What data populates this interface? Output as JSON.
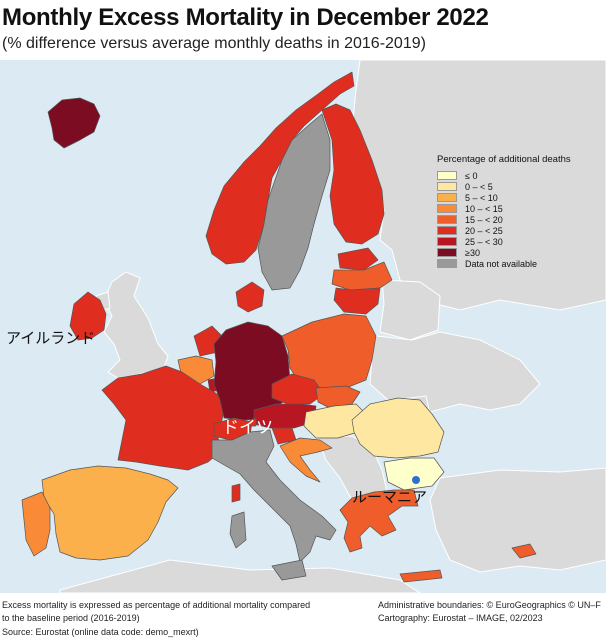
{
  "title": "Monthly Excess Mortality in December 2022",
  "subtitle": "(% difference versus average monthly deaths in 2016-2019)",
  "legend": {
    "title": "Percentage of additional deaths",
    "items": [
      {
        "label": "≤ 0",
        "color": "#ffffcc"
      },
      {
        "label": "0 – < 5",
        "color": "#fde7a1"
      },
      {
        "label": "5 – < 10",
        "color": "#fbb04c"
      },
      {
        "label": "10 – < 15",
        "color": "#f98b38"
      },
      {
        "label": "15 – < 20",
        "color": "#ef5d2a"
      },
      {
        "label": "20 – < 25",
        "color": "#df2e1f"
      },
      {
        "label": "25 – < 30",
        "color": "#b71622"
      },
      {
        "label": "≥30",
        "color": "#7b0c22"
      },
      {
        "label": "Data not available",
        "color": "#999999"
      }
    ]
  },
  "annotations": {
    "ireland": "アイルランド",
    "germany": "ドイツ",
    "romania": "ルーマニア"
  },
  "footer": {
    "note_line1": "Excess mortality is expressed as percentage of additional mortality compared",
    "note_line2": "to the baseline period (2016-2019)",
    "source": "Source: Eurostat (online data code: demo_mexrt)",
    "admin": "Administrative boundaries: © EuroGeographics © UN–F",
    "cartography": "Cartography: Eurostat – IMAGE, 02/2023"
  },
  "colors": {
    "sea": "#dbeaf3",
    "non_eu_land": "#dadada",
    "border": "#555555"
  },
  "countries": [
    {
      "name": "Iceland",
      "class": "≥30"
    },
    {
      "name": "Ireland",
      "class": "20 – < 25"
    },
    {
      "name": "Norway",
      "class": "20 – < 25"
    },
    {
      "name": "Sweden",
      "class": "Data not available"
    },
    {
      "name": "Finland",
      "class": "20 – < 25"
    },
    {
      "name": "Estonia",
      "class": "20 – < 25"
    },
    {
      "name": "Latvia",
      "class": "15 – < 20"
    },
    {
      "name": "Lithuania",
      "class": "20 – < 25"
    },
    {
      "name": "Denmark",
      "class": "20 – < 25"
    },
    {
      "name": "Netherlands",
      "class": "20 – < 25"
    },
    {
      "name": "Belgium",
      "class": "10 – < 15"
    },
    {
      "name": "Luxembourg",
      "class": "25 – < 30"
    },
    {
      "name": "France",
      "class": "20 – < 25"
    },
    {
      "name": "Germany",
      "class": "≥30"
    },
    {
      "name": "Poland",
      "class": "15 – < 20"
    },
    {
      "name": "Czechia",
      "class": "20 – < 25"
    },
    {
      "name": "Slovakia",
      "class": "15 – < 20"
    },
    {
      "name": "Austria",
      "class": "25 – < 30"
    },
    {
      "name": "Switzerland",
      "class": "20 – < 25"
    },
    {
      "name": "Liechtenstein",
      "class": "20 – < 25"
    },
    {
      "name": "Slovenia",
      "class": "20 – < 25"
    },
    {
      "name": "Hungary",
      "class": "0 – < 5"
    },
    {
      "name": "Croatia",
      "class": "10 – < 15"
    },
    {
      "name": "Romania",
      "class": "0 – < 5"
    },
    {
      "name": "Bulgaria",
      "class": "≤ 0"
    },
    {
      "name": "Italy",
      "class": "Data not available"
    },
    {
      "name": "Spain",
      "class": "5 – < 10"
    },
    {
      "name": "Portugal",
      "class": "10 – < 15"
    },
    {
      "name": "Greece",
      "class": "15 – < 20"
    },
    {
      "name": "Cyprus",
      "class": "15 – < 20"
    },
    {
      "name": "Malta",
      "class": "20 – < 25"
    }
  ]
}
